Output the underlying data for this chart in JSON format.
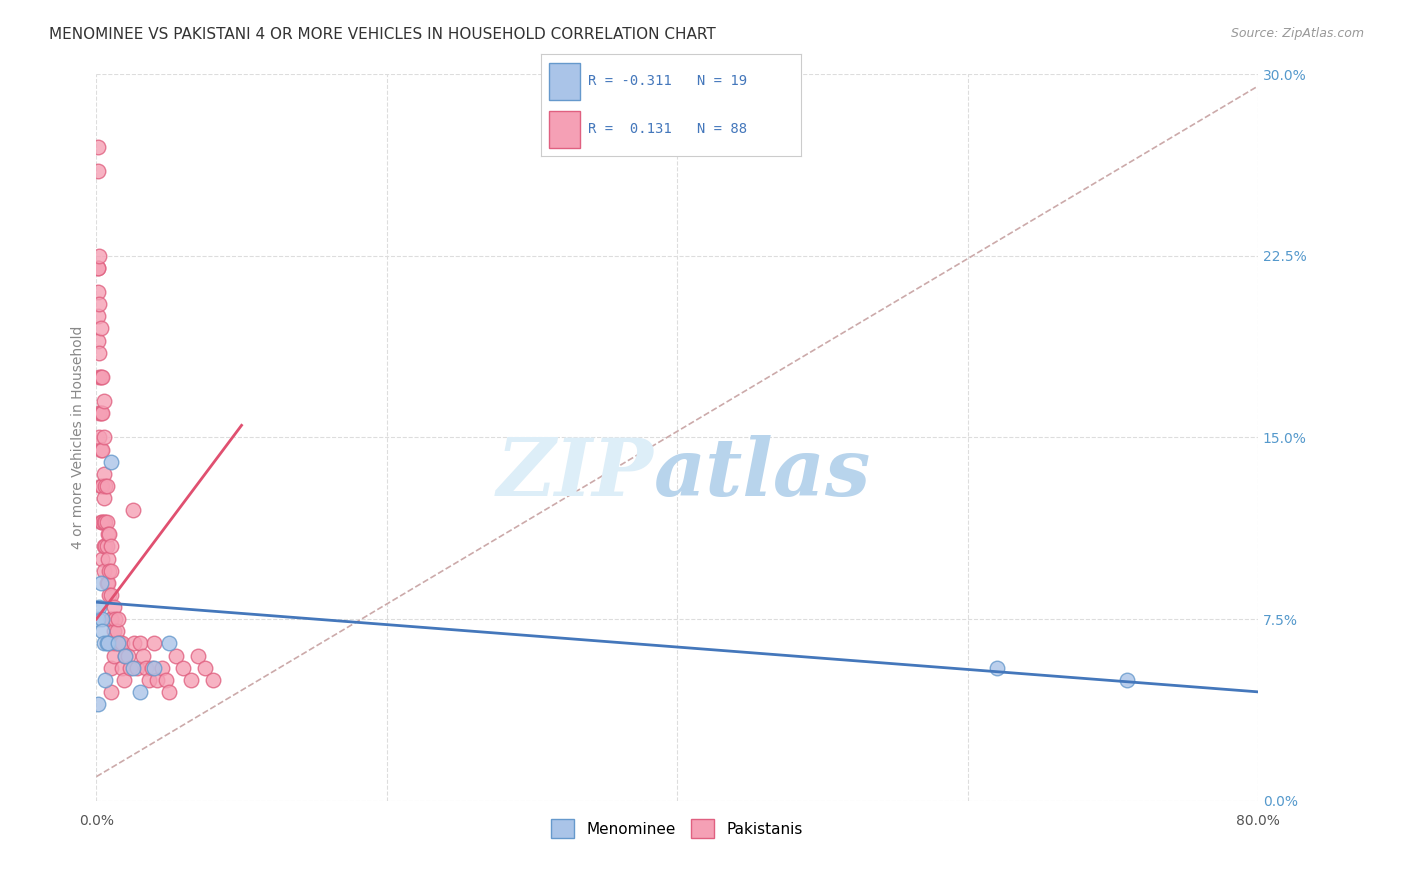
{
  "title": "MENOMINEE VS PAKISTANI 4 OR MORE VEHICLES IN HOUSEHOLD CORRELATION CHART",
  "source": "Source: ZipAtlas.com",
  "ylabel": "4 or more Vehicles in Household",
  "xlim": [
    0,
    0.8
  ],
  "ylim": [
    0,
    0.3
  ],
  "xticks": [
    0.0,
    0.2,
    0.4,
    0.6,
    0.8
  ],
  "yticks": [
    0.0,
    0.075,
    0.15,
    0.225,
    0.3
  ],
  "menominee_color": "#aac4e8",
  "pakistani_color": "#f5a0b5",
  "menominee_edge": "#6699cc",
  "pakistani_edge": "#e06080",
  "trend_menominee_color": "#4477bb",
  "trend_pakistani_color": "#e05070",
  "R_menominee": -0.311,
  "N_menominee": 19,
  "R_pakistani": 0.131,
  "N_pakistani": 88,
  "menominee_x": [
    0.001,
    0.001,
    0.002,
    0.003,
    0.004,
    0.004,
    0.005,
    0.006,
    0.007,
    0.008,
    0.01,
    0.015,
    0.02,
    0.025,
    0.03,
    0.04,
    0.05,
    0.62,
    0.71
  ],
  "menominee_y": [
    0.075,
    0.04,
    0.08,
    0.09,
    0.075,
    0.07,
    0.065,
    0.05,
    0.065,
    0.065,
    0.14,
    0.065,
    0.06,
    0.055,
    0.045,
    0.055,
    0.065,
    0.055,
    0.05
  ],
  "pakistani_x": [
    0.001,
    0.001,
    0.001,
    0.001,
    0.001,
    0.001,
    0.001,
    0.002,
    0.002,
    0.002,
    0.002,
    0.002,
    0.002,
    0.003,
    0.003,
    0.003,
    0.003,
    0.003,
    0.003,
    0.004,
    0.004,
    0.004,
    0.004,
    0.004,
    0.004,
    0.005,
    0.005,
    0.005,
    0.005,
    0.005,
    0.005,
    0.005,
    0.006,
    0.006,
    0.006,
    0.007,
    0.007,
    0.007,
    0.007,
    0.008,
    0.008,
    0.008,
    0.009,
    0.009,
    0.009,
    0.01,
    0.01,
    0.01,
    0.01,
    0.01,
    0.01,
    0.01,
    0.01,
    0.01,
    0.012,
    0.012,
    0.012,
    0.013,
    0.013,
    0.014,
    0.015,
    0.015,
    0.016,
    0.018,
    0.018,
    0.019,
    0.02,
    0.022,
    0.023,
    0.025,
    0.026,
    0.028,
    0.03,
    0.032,
    0.034,
    0.036,
    0.038,
    0.04,
    0.042,
    0.045,
    0.048,
    0.05,
    0.055,
    0.06,
    0.065,
    0.07,
    0.075,
    0.08
  ],
  "pakistani_y": [
    0.27,
    0.26,
    0.22,
    0.22,
    0.21,
    0.2,
    0.19,
    0.225,
    0.205,
    0.185,
    0.175,
    0.16,
    0.15,
    0.195,
    0.175,
    0.16,
    0.145,
    0.13,
    0.115,
    0.175,
    0.16,
    0.145,
    0.13,
    0.115,
    0.1,
    0.165,
    0.15,
    0.135,
    0.125,
    0.115,
    0.105,
    0.095,
    0.13,
    0.115,
    0.105,
    0.13,
    0.115,
    0.105,
    0.09,
    0.11,
    0.1,
    0.09,
    0.11,
    0.095,
    0.085,
    0.105,
    0.095,
    0.085,
    0.075,
    0.065,
    0.075,
    0.065,
    0.055,
    0.045,
    0.08,
    0.07,
    0.06,
    0.075,
    0.065,
    0.07,
    0.075,
    0.065,
    0.065,
    0.065,
    0.055,
    0.05,
    0.06,
    0.06,
    0.055,
    0.12,
    0.065,
    0.055,
    0.065,
    0.06,
    0.055,
    0.05,
    0.055,
    0.065,
    0.05,
    0.055,
    0.05,
    0.045,
    0.06,
    0.055,
    0.05,
    0.06,
    0.055,
    0.05
  ],
  "trend_men_x0": 0.0,
  "trend_men_x1": 0.8,
  "trend_men_y0": 0.082,
  "trend_men_y1": 0.045,
  "trend_pak_x0": 0.0,
  "trend_pak_x1": 0.1,
  "trend_pak_y0": 0.075,
  "trend_pak_y1": 0.155,
  "trend_overall_x0": 0.0,
  "trend_overall_x1": 0.8,
  "trend_overall_y0": 0.01,
  "trend_overall_y1": 0.295
}
